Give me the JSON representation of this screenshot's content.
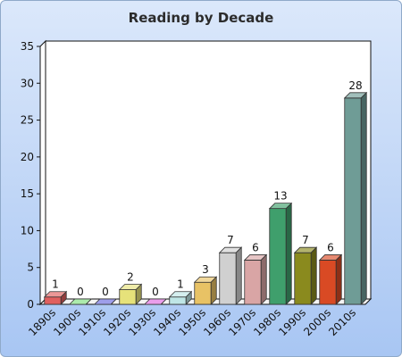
{
  "chart_data": {
    "type": "bar",
    "title": "Reading by Decade",
    "xlabel": "",
    "ylabel": "",
    "categories": [
      "1890s",
      "1900s",
      "1910s",
      "1920s",
      "1930s",
      "1940s",
      "1950s",
      "1960s",
      "1970s",
      "1980s",
      "1990s",
      "2000s",
      "2010s"
    ],
    "values": [
      1,
      0,
      0,
      2,
      0,
      1,
      3,
      7,
      6,
      13,
      7,
      6,
      28
    ],
    "colors": [
      "#e0605f",
      "#7fe07f",
      "#6a6adf",
      "#e6e27a",
      "#e06ae0",
      "#bfe6e6",
      "#e8c265",
      "#d0d0d0",
      "#d9a5a5",
      "#3f9f6c",
      "#8a8a1e",
      "#d94a24",
      "#6f9c96"
    ],
    "ylim": [
      0,
      35
    ],
    "yticks": [
      0,
      5,
      10,
      15,
      20,
      25,
      30,
      35
    ],
    "grid": false,
    "legend": "none",
    "style": "3d-bar"
  }
}
